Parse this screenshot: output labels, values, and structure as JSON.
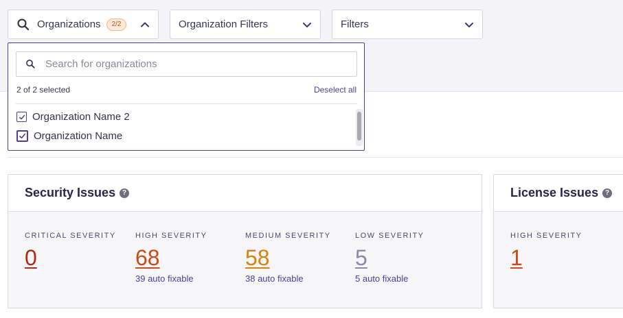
{
  "filters": {
    "organizations": {
      "label": "Organizations",
      "badge": "2/2"
    },
    "organization_filters": {
      "label": "Organization Filters"
    },
    "filters": {
      "label": "Filters"
    }
  },
  "dropdown": {
    "search_placeholder": "Search for organizations",
    "selected_count": "2 of 2 selected",
    "deselect_all": "Deselect all",
    "options": [
      {
        "label": "Organization Name 2",
        "checked": true
      },
      {
        "label": "Organization Name",
        "checked": true
      }
    ]
  },
  "security": {
    "title": "Security Issues",
    "metrics": [
      {
        "label": "CRITICAL SEVERITY",
        "value": "0",
        "fix": "",
        "color": "#b0261a"
      },
      {
        "label": "HIGH SEVERITY",
        "value": "68",
        "fix": "39 auto fixable",
        "color": "#cc4a17"
      },
      {
        "label": "MEDIUM SEVERITY",
        "value": "58",
        "fix": "38 auto fixable",
        "color": "#d8820c"
      },
      {
        "label": "LOW SEVERITY",
        "value": "5",
        "fix": "5 auto fixable",
        "color": "#8a8aa4"
      }
    ]
  },
  "license": {
    "title": "License Issues",
    "metrics": [
      {
        "label": "HIGH SEVERITY",
        "value": "1",
        "fix": "",
        "color": "#cc4a17"
      }
    ]
  },
  "colors": {
    "accent": "#4b3f9e",
    "badge_bg": "#fde9d9"
  }
}
